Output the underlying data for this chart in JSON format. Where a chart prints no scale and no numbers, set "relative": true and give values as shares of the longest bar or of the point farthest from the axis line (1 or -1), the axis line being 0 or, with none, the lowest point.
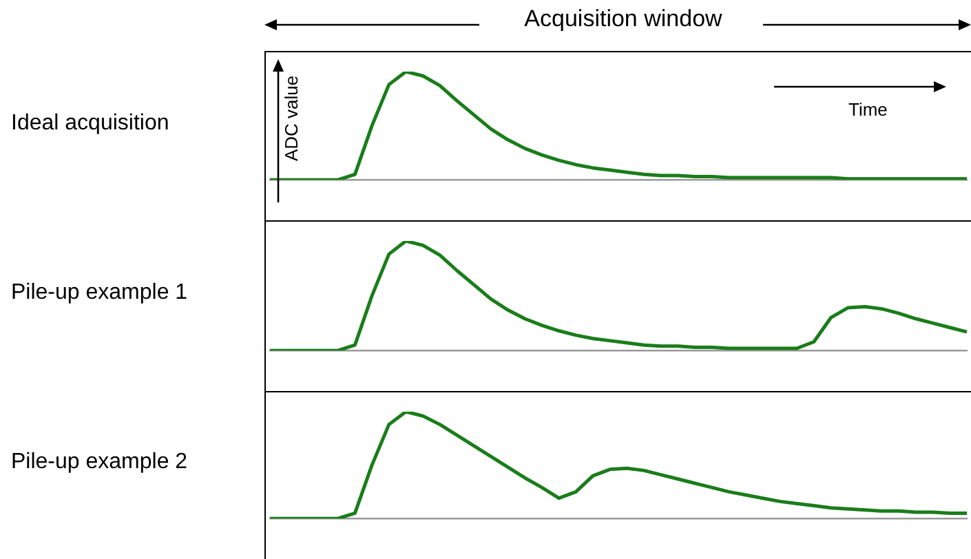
{
  "chart_data": [
    {
      "type": "line",
      "title": "Acquisition window",
      "ylabel": "Ideal acquisition",
      "annotations": [
        "ADC value",
        "Time"
      ],
      "relative": true,
      "marker": "none",
      "categories": [
        null,
        null,
        null,
        null,
        null,
        null,
        null,
        null,
        null,
        null,
        null,
        null,
        null,
        null,
        null,
        null,
        null,
        null,
        null,
        null,
        null,
        null,
        null,
        null,
        null,
        null,
        null,
        null,
        null,
        null,
        null,
        null,
        null,
        null,
        null,
        null,
        null,
        null,
        null,
        null,
        null,
        null
      ],
      "series": [
        {
          "color": "#1a7d1a",
          "values": [
            0,
            0,
            0,
            0,
            0,
            0.05,
            0.5,
            0.88,
            1.0,
            0.96,
            0.87,
            0.73,
            0.6,
            0.47,
            0.37,
            0.29,
            0.23,
            0.18,
            0.14,
            0.11,
            0.09,
            0.07,
            0.05,
            0.04,
            0.04,
            0.03,
            0.03,
            0.02,
            0.02,
            0.02,
            0.02,
            0.02,
            0.02,
            0.02,
            0.01,
            0.01,
            0.01,
            0.01,
            0.01,
            0.01,
            0.01,
            0.01
          ]
        }
      ]
    },
    {
      "type": "line",
      "ylabel": "Pile-up example 1",
      "relative": true,
      "marker": "none",
      "categories": [
        null,
        null,
        null,
        null,
        null,
        null,
        null,
        null,
        null,
        null,
        null,
        null,
        null,
        null,
        null,
        null,
        null,
        null,
        null,
        null,
        null,
        null,
        null,
        null,
        null,
        null,
        null,
        null,
        null,
        null,
        null,
        null,
        null,
        null,
        null,
        null,
        null,
        null,
        null,
        null,
        null,
        null
      ],
      "series": [
        {
          "color": "#1a7d1a",
          "values": [
            0,
            0,
            0,
            0,
            0,
            0.05,
            0.5,
            0.88,
            1.0,
            0.96,
            0.87,
            0.73,
            0.6,
            0.47,
            0.37,
            0.29,
            0.23,
            0.18,
            0.14,
            0.11,
            0.09,
            0.07,
            0.05,
            0.04,
            0.04,
            0.03,
            0.03,
            0.02,
            0.02,
            0.02,
            0.02,
            0.02,
            0.08,
            0.3,
            0.39,
            0.4,
            0.38,
            0.34,
            0.29,
            0.25,
            0.21,
            0.17
          ]
        }
      ]
    },
    {
      "type": "line",
      "ylabel": "Pile-up example 2",
      "relative": true,
      "marker": "none",
      "categories": [
        null,
        null,
        null,
        null,
        null,
        null,
        null,
        null,
        null,
        null,
        null,
        null,
        null,
        null,
        null,
        null,
        null,
        null,
        null,
        null,
        null,
        null,
        null,
        null,
        null,
        null,
        null,
        null,
        null,
        null,
        null,
        null,
        null,
        null,
        null,
        null,
        null,
        null,
        null,
        null,
        null,
        null
      ],
      "series": [
        {
          "color": "#1a7d1a",
          "values": [
            0,
            0,
            0,
            0,
            0,
            0.05,
            0.5,
            0.88,
            1.0,
            0.96,
            0.88,
            0.78,
            0.68,
            0.58,
            0.48,
            0.38,
            0.29,
            0.19,
            0.25,
            0.4,
            0.46,
            0.47,
            0.45,
            0.41,
            0.37,
            0.33,
            0.29,
            0.25,
            0.22,
            0.19,
            0.16,
            0.14,
            0.12,
            0.1,
            0.09,
            0.08,
            0.07,
            0.07,
            0.06,
            0.06,
            0.05,
            0.05
          ]
        }
      ]
    }
  ]
}
